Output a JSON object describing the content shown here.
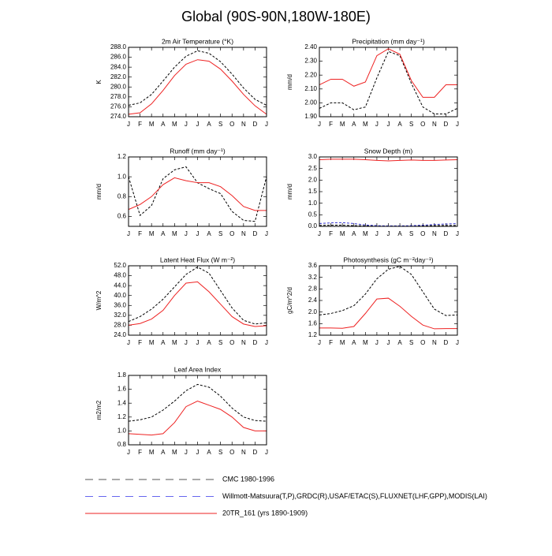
{
  "title": "Global (90S-90N,180W-180E)",
  "legend": [
    {
      "name": "CMC 1980-1996",
      "color": "#555555",
      "dash": true
    },
    {
      "name": "Willmott-Matsuura(T,P),GRDC(R),USAF/ETAC(S),FLUXNET(LHF,GPP),MODIS(LAI)",
      "color": "#6666ee",
      "dash": true
    },
    {
      "name": "20TR_161 (yrs 1890-1909)",
      "color": "#ee2222",
      "dash": false
    }
  ],
  "chart_data": [
    {
      "type": "line",
      "title": "2m Air Temperature (°K)",
      "y_label": "K",
      "categories": [
        "J",
        "F",
        "M",
        "A",
        "M",
        "J",
        "J",
        "A",
        "S",
        "O",
        "N",
        "D",
        "J"
      ],
      "ylim": [
        274,
        288
      ],
      "yticks": [
        {
          "value": 274,
          "label": "274.0"
        },
        {
          "value": 276,
          "label": "276.0"
        },
        {
          "value": 278,
          "label": "278.0"
        },
        {
          "value": 280,
          "label": "280.0"
        },
        {
          "value": 282,
          "label": "282.0"
        },
        {
          "value": 284,
          "label": "284.0"
        },
        {
          "value": 286,
          "label": "286.0"
        },
        {
          "value": 288,
          "label": "288.0"
        }
      ],
      "series": [
        {
          "legend": 0,
          "color": "#000000",
          "values": [
            276.3,
            276.8,
            278.5,
            281.2,
            284.0,
            286.2,
            287.3,
            286.8,
            285.1,
            282.6,
            279.8,
            277.5,
            276.3
          ]
        },
        {
          "legend": 2,
          "color": "#ee2222",
          "values": [
            274.5,
            274.8,
            276.6,
            279.3,
            282.3,
            284.6,
            285.5,
            285.2,
            283.6,
            281.2,
            278.5,
            276.2,
            274.5
          ]
        }
      ]
    },
    {
      "type": "line",
      "title": "Precipitation (mm day⁻¹)",
      "y_label": "mm/d",
      "categories": [
        "J",
        "F",
        "M",
        "A",
        "M",
        "J",
        "J",
        "A",
        "S",
        "O",
        "N",
        "D",
        "J"
      ],
      "ylim": [
        1.9,
        2.4
      ],
      "yticks": [
        {
          "value": 1.9,
          "label": "1.90"
        },
        {
          "value": 2.0,
          "label": "2.00"
        },
        {
          "value": 2.1,
          "label": "2.10"
        },
        {
          "value": 2.2,
          "label": "2.20"
        },
        {
          "value": 2.3,
          "label": "2.30"
        },
        {
          "value": 2.4,
          "label": "2.40"
        }
      ],
      "series": [
        {
          "legend": 0,
          "color": "#000000",
          "values": [
            1.96,
            2.0,
            2.0,
            1.95,
            1.97,
            2.18,
            2.37,
            2.34,
            2.14,
            1.97,
            1.92,
            1.92,
            1.96
          ]
        },
        {
          "legend": 2,
          "color": "#ee2222",
          "values": [
            2.13,
            2.17,
            2.17,
            2.12,
            2.15,
            2.34,
            2.39,
            2.35,
            2.16,
            2.04,
            2.04,
            2.13,
            2.13
          ]
        }
      ]
    },
    {
      "type": "line",
      "title": "Runoff (mm day⁻¹)",
      "y_label": "mm/d",
      "categories": [
        "J",
        "F",
        "M",
        "A",
        "M",
        "J",
        "J",
        "A",
        "S",
        "O",
        "N",
        "D",
        "J"
      ],
      "ylim": [
        0.5,
        1.2
      ],
      "yticks": [
        0.6,
        0.8,
        {
          "value": 1.0,
          "label": "1.0"
        },
        1.2
      ],
      "series": [
        {
          "legend": 0,
          "color": "#000000",
          "values": [
            1.0,
            0.61,
            0.71,
            0.98,
            1.07,
            1.1,
            0.94,
            0.88,
            0.83,
            0.65,
            0.56,
            0.55,
            1.0
          ]
        },
        {
          "legend": 2,
          "color": "#ee2222",
          "values": [
            0.67,
            0.72,
            0.8,
            0.92,
            0.99,
            0.96,
            0.94,
            0.94,
            0.9,
            0.81,
            0.7,
            0.66,
            0.66
          ]
        }
      ]
    },
    {
      "type": "line",
      "title": "Snow Depth (m)",
      "y_label": "mm/d",
      "categories": [
        "J",
        "F",
        "M",
        "A",
        "M",
        "J",
        "J",
        "A",
        "S",
        "O",
        "N",
        "D",
        "J"
      ],
      "ylim": [
        0,
        3
      ],
      "yticks": [
        {
          "value": 0,
          "label": "0.0"
        },
        0.5,
        {
          "value": 1,
          "label": "1.0"
        },
        1.5,
        {
          "value": 2,
          "label": "2.0"
        },
        2.5,
        {
          "value": 3,
          "label": "3.0"
        }
      ],
      "series": [
        {
          "legend": 0,
          "color": "#000000",
          "values": [
            0.04,
            0.05,
            0.05,
            0.03,
            0.02,
            0.01,
            0.01,
            0.01,
            0.01,
            0.02,
            0.03,
            0.04,
            0.04
          ]
        },
        {
          "legend": 1,
          "color": "#3333cc",
          "values": [
            0.12,
            0.15,
            0.16,
            0.12,
            0.06,
            0.03,
            0.02,
            0.02,
            0.03,
            0.05,
            0.08,
            0.1,
            0.12
          ]
        },
        {
          "legend": 2,
          "color": "#ee2222",
          "values": [
            2.88,
            2.9,
            2.9,
            2.9,
            2.88,
            2.85,
            2.83,
            2.85,
            2.87,
            2.85,
            2.85,
            2.87,
            2.88
          ]
        }
      ]
    },
    {
      "type": "line",
      "title": "Latent Heat Flux (W m⁻²)",
      "y_label": "W/m^2",
      "categories": [
        "J",
        "F",
        "M",
        "A",
        "M",
        "J",
        "J",
        "A",
        "S",
        "O",
        "N",
        "D",
        "J"
      ],
      "ylim": [
        24,
        52
      ],
      "yticks": [
        {
          "value": 24,
          "label": "24.0"
        },
        {
          "value": 28,
          "label": "28.0"
        },
        {
          "value": 32,
          "label": "32.0"
        },
        {
          "value": 36,
          "label": "36.0"
        },
        {
          "value": 40,
          "label": "40.0"
        },
        {
          "value": 44,
          "label": "44.0"
        },
        {
          "value": 48,
          "label": "48.0"
        },
        {
          "value": 52,
          "label": "52.0"
        }
      ],
      "series": [
        {
          "legend": 0,
          "color": "#000000",
          "values": [
            29.5,
            31.5,
            34.5,
            38.5,
            43.5,
            48.5,
            51.5,
            49.0,
            42.0,
            35.0,
            30.0,
            28.5,
            29.0
          ]
        },
        {
          "legend": 2,
          "color": "#ee2222",
          "values": [
            28.0,
            28.7,
            30.5,
            34.0,
            40.0,
            45.0,
            45.5,
            41.5,
            36.5,
            31.5,
            28.5,
            27.5,
            27.8
          ]
        }
      ]
    },
    {
      "type": "line",
      "title": "Photosynthesis (gC m⁻²day⁻¹)",
      "y_label": "gC/m^2/d",
      "categories": [
        "J",
        "F",
        "M",
        "A",
        "M",
        "J",
        "J",
        "A",
        "S",
        "O",
        "N",
        "D",
        "J"
      ],
      "ylim": [
        1.2,
        3.6
      ],
      "yticks": [
        1.2,
        1.6,
        {
          "value": 2.0,
          "label": "2.0"
        },
        2.4,
        2.8,
        3.2,
        3.6
      ],
      "series": [
        {
          "legend": 0,
          "color": "#000000",
          "values": [
            1.9,
            1.95,
            2.05,
            2.22,
            2.62,
            3.15,
            3.48,
            3.58,
            3.3,
            2.7,
            2.1,
            1.88,
            1.9
          ]
        },
        {
          "legend": 2,
          "color": "#ee2222",
          "values": [
            1.45,
            1.45,
            1.44,
            1.5,
            1.95,
            2.45,
            2.48,
            2.2,
            1.85,
            1.55,
            1.42,
            1.43,
            1.43
          ]
        }
      ]
    },
    {
      "type": "line",
      "title": "Leaf Area Index",
      "y_label": "m2/m2",
      "categories": [
        "J",
        "F",
        "M",
        "A",
        "M",
        "J",
        "J",
        "A",
        "S",
        "O",
        "N",
        "D",
        "J"
      ],
      "ylim": [
        0.8,
        1.8
      ],
      "yticks": [
        0.8,
        {
          "value": 1.0,
          "label": "1.0"
        },
        1.2,
        1.4,
        1.6,
        1.8
      ],
      "series": [
        {
          "legend": 0,
          "color": "#000000",
          "values": [
            1.14,
            1.16,
            1.2,
            1.3,
            1.43,
            1.58,
            1.67,
            1.63,
            1.5,
            1.33,
            1.2,
            1.15,
            1.14
          ]
        },
        {
          "legend": 2,
          "color": "#ee2222",
          "values": [
            0.96,
            0.95,
            0.94,
            0.96,
            1.12,
            1.35,
            1.43,
            1.37,
            1.31,
            1.2,
            1.05,
            1.0,
            1.0
          ]
        }
      ]
    }
  ]
}
